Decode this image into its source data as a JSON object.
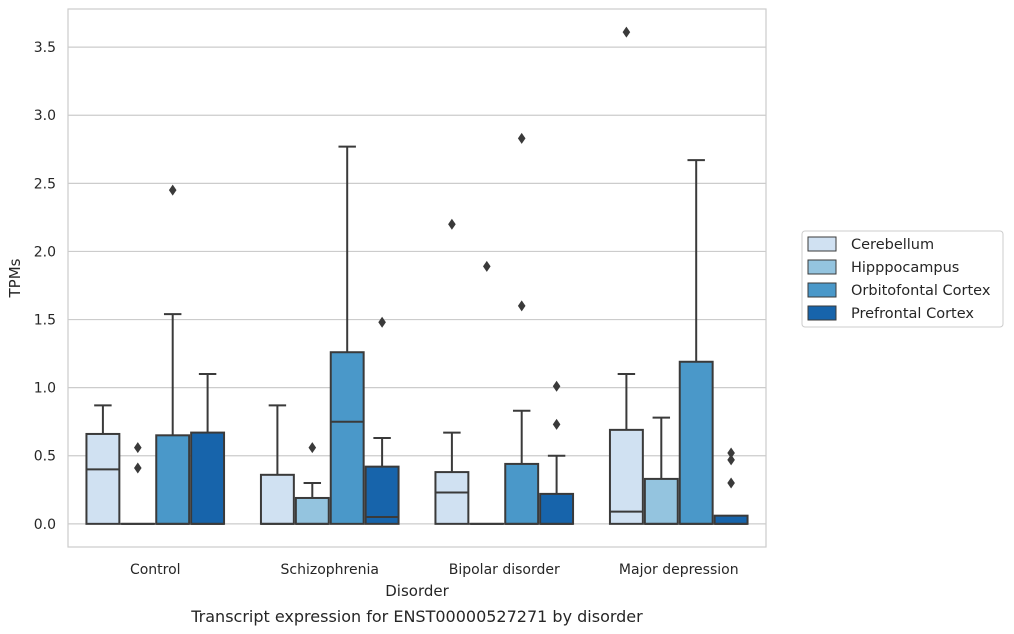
{
  "chart_data": {
    "type": "box",
    "caption": "Transcript expression for ENST00000527271 by disorder",
    "xlabel": "Disorder",
    "ylabel": "TPMs",
    "ylim": [
      -0.17,
      3.78
    ],
    "yticks": [
      "0.0",
      "0.5",
      "1.0",
      "1.5",
      "2.0",
      "2.5",
      "3.0",
      "3.5"
    ],
    "grid": "horizontal",
    "legend_position": "right",
    "categories": [
      "Control",
      "Schizophrenia",
      "Bipolar disorder",
      "Major depression"
    ],
    "series": [
      {
        "name": "Cerebellum",
        "color": "#d0e1f2",
        "boxes": [
          {
            "q1": 0.0,
            "median": 0.4,
            "q3": 0.66,
            "whisker_low": 0.0,
            "whisker_high": 0.87,
            "outliers": []
          },
          {
            "q1": 0.0,
            "median": 0.0,
            "q3": 0.36,
            "whisker_low": 0.0,
            "whisker_high": 0.87,
            "outliers": []
          },
          {
            "q1": 0.0,
            "median": 0.23,
            "q3": 0.38,
            "whisker_low": 0.0,
            "whisker_high": 0.67,
            "outliers": [
              2.2
            ]
          },
          {
            "q1": 0.0,
            "median": 0.09,
            "q3": 0.69,
            "whisker_low": 0.0,
            "whisker_high": 1.1,
            "outliers": [
              3.61
            ]
          }
        ]
      },
      {
        "name": "Hipppocampus",
        "color": "#94c4df",
        "boxes": [
          {
            "q1": 0.0,
            "median": 0.0,
            "q3": 0.0,
            "whisker_low": 0.0,
            "whisker_high": 0.0,
            "outliers": [
              0.41,
              0.56
            ]
          },
          {
            "q1": 0.0,
            "median": 0.0,
            "q3": 0.19,
            "whisker_low": 0.0,
            "whisker_high": 0.3,
            "outliers": [
              0.56
            ]
          },
          {
            "q1": 0.0,
            "median": 0.0,
            "q3": 0.0,
            "whisker_low": 0.0,
            "whisker_high": 0.0,
            "outliers": [
              1.89
            ]
          },
          {
            "q1": 0.0,
            "median": 0.0,
            "q3": 0.33,
            "whisker_low": 0.0,
            "whisker_high": 0.78,
            "outliers": []
          }
        ]
      },
      {
        "name": "Orbitofontal Cortex",
        "color": "#4a98c9",
        "boxes": [
          {
            "q1": 0.0,
            "median": 0.0,
            "q3": 0.65,
            "whisker_low": 0.0,
            "whisker_high": 1.54,
            "outliers": [
              2.45
            ]
          },
          {
            "q1": 0.0,
            "median": 0.75,
            "q3": 1.26,
            "whisker_low": 0.0,
            "whisker_high": 2.77,
            "outliers": []
          },
          {
            "q1": 0.0,
            "median": 0.0,
            "q3": 0.44,
            "whisker_low": 0.0,
            "whisker_high": 0.83,
            "outliers": [
              1.6,
              2.83
            ]
          },
          {
            "q1": 0.0,
            "median": 0.0,
            "q3": 1.19,
            "whisker_low": 0.0,
            "whisker_high": 2.67,
            "outliers": []
          }
        ]
      },
      {
        "name": "Prefrontal Cortex",
        "color": "#1764ab",
        "boxes": [
          {
            "q1": 0.0,
            "median": 0.0,
            "q3": 0.67,
            "whisker_low": 0.0,
            "whisker_high": 1.1,
            "outliers": []
          },
          {
            "q1": 0.0,
            "median": 0.05,
            "q3": 0.42,
            "whisker_low": 0.0,
            "whisker_high": 0.63,
            "outliers": [
              1.48
            ]
          },
          {
            "q1": 0.0,
            "median": 0.0,
            "q3": 0.22,
            "whisker_low": 0.0,
            "whisker_high": 0.5,
            "outliers": [
              0.73,
              1.01
            ]
          },
          {
            "q1": 0.0,
            "median": 0.0,
            "q3": 0.06,
            "whisker_low": 0.0,
            "whisker_high": 0.06,
            "outliers": [
              0.3,
              0.47,
              0.52
            ]
          }
        ]
      }
    ]
  }
}
